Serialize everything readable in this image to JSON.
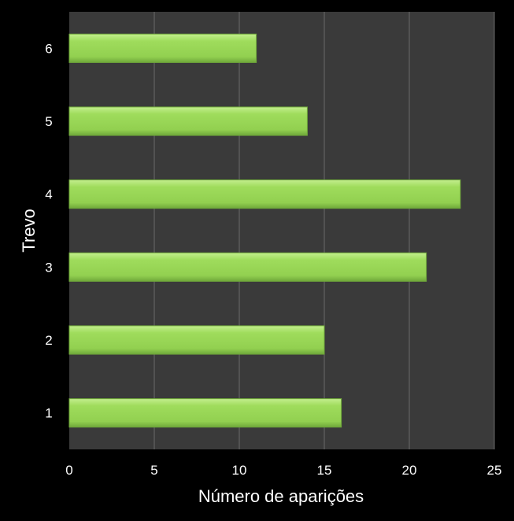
{
  "chart_data": {
    "type": "bar",
    "orientation": "horizontal",
    "title": "",
    "xlabel": "Número de aparições",
    "ylabel": "Trevo",
    "categories": [
      "1",
      "2",
      "3",
      "4",
      "5",
      "6"
    ],
    "values": [
      16,
      15,
      21,
      23,
      14,
      11
    ],
    "xlim": [
      0,
      25
    ],
    "xticks": [
      "0",
      "5",
      "10",
      "15",
      "20",
      "25"
    ],
    "grid": "vertical",
    "legend": "none",
    "colors": {
      "background": "#000000",
      "plot_area": "#3a3a3a",
      "bar": "#92d050",
      "bar_highlight": "#b5e67c",
      "bar_shadow": "#6fa83a",
      "gridline": "#6a6a6a",
      "text": "#ffffff"
    }
  }
}
